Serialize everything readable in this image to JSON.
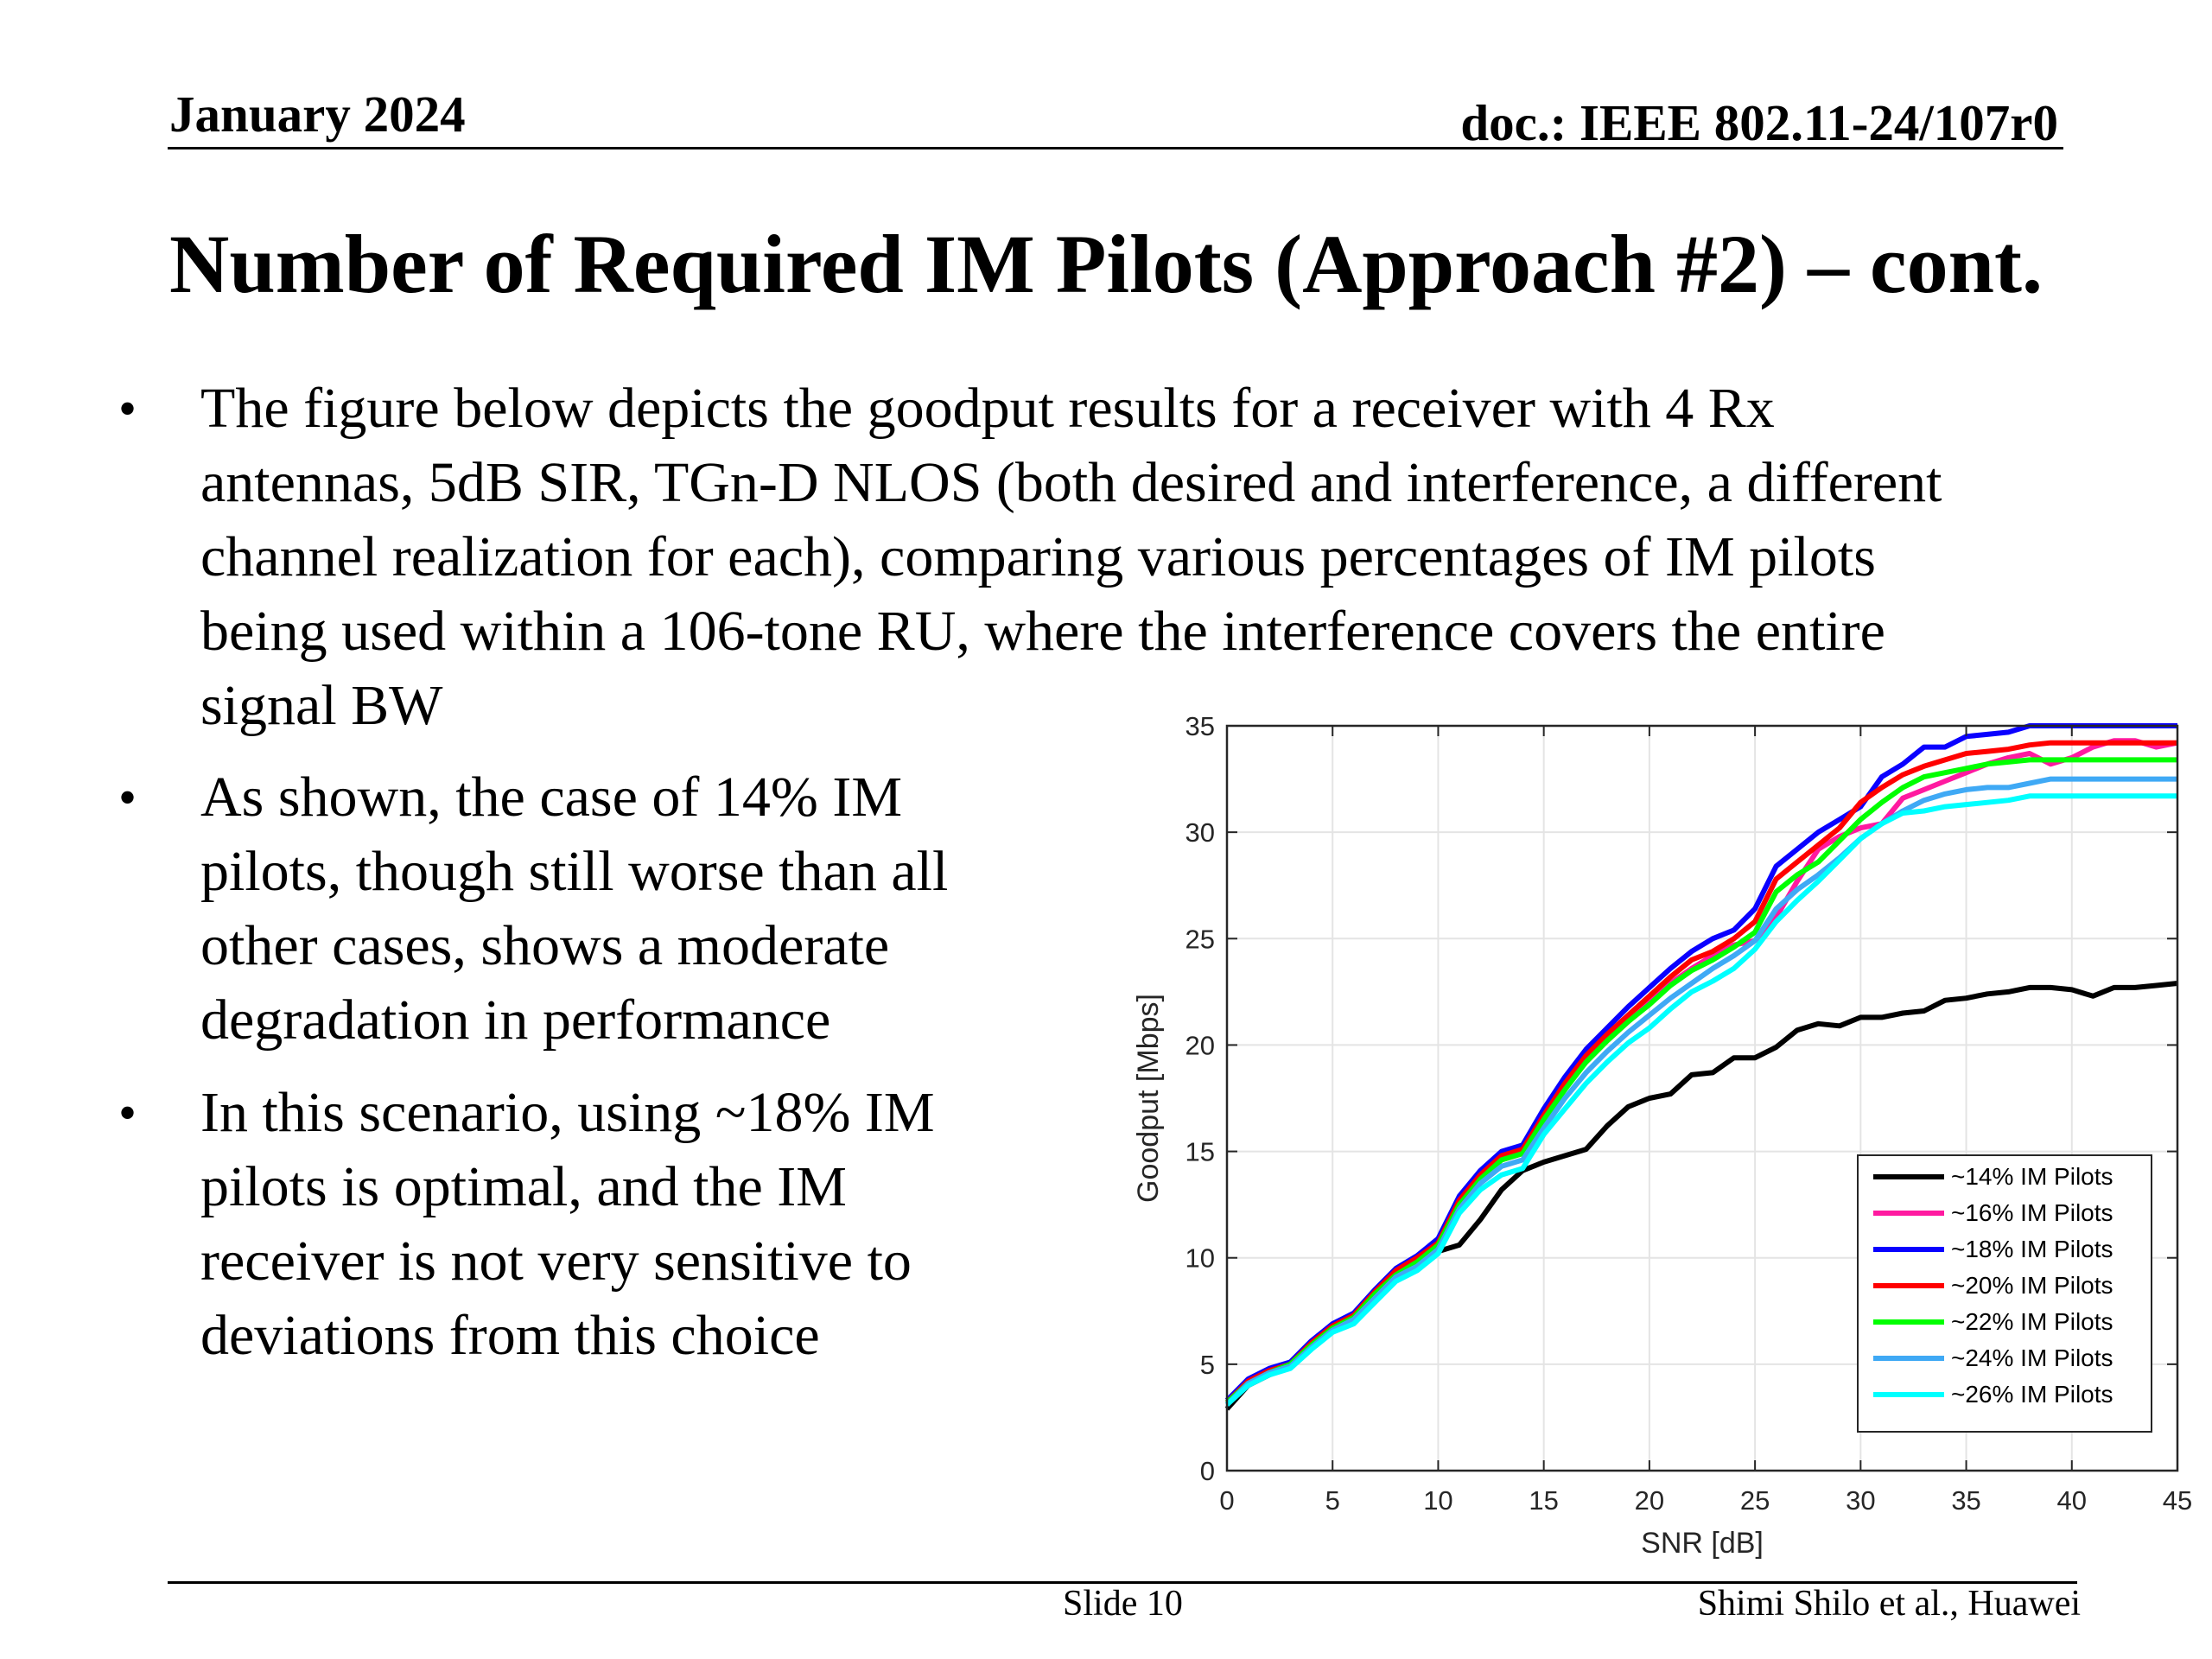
{
  "header": {
    "date": "January 2024",
    "doc": "doc.: IEEE 802.11-24/107r0"
  },
  "title": "Number of Required IM Pilots (Approach #2) – cont.",
  "bullets": [
    {
      "lines": [
        "The figure below depicts the goodput results for a receiver with 4 Rx",
        "antennas, 5dB SIR, TGn-D NLOS (both desired and interference, a different",
        "channel realization for each), comparing various percentages of IM pilots",
        "being used within a 106-tone RU, where the interference covers the entire",
        "signal BW"
      ]
    },
    {
      "lines": [
        "As shown, the case of 14% IM",
        "pilots, though still worse than all",
        "other cases, shows a moderate",
        "degradation in performance"
      ]
    },
    {
      "lines": [
        "In this scenario, using ~18% IM",
        "pilots is optimal, and the IM",
        "receiver is not very sensitive to",
        "deviations from this choice"
      ]
    }
  ],
  "bullet_symbol": "•",
  "footer": {
    "slide": "Slide 10",
    "author": "Shimi Shilo et al., Huawei"
  },
  "chart_data": {
    "type": "line",
    "xlabel": "SNR [dB]",
    "ylabel": "Goodput [Mbps]",
    "xlim": [
      0,
      45
    ],
    "ylim": [
      0,
      35
    ],
    "xticks": [
      0,
      5,
      10,
      15,
      20,
      25,
      30,
      35,
      40,
      45
    ],
    "yticks": [
      0,
      5,
      10,
      15,
      20,
      25,
      30,
      35
    ],
    "grid": true,
    "legend_position": "bottom-right",
    "x": [
      0,
      1,
      2,
      3,
      4,
      5,
      6,
      7,
      8,
      9,
      10,
      11,
      12,
      13,
      14,
      15,
      16,
      17,
      18,
      19,
      20,
      21,
      22,
      23,
      24,
      25,
      26,
      27,
      28,
      29,
      30,
      31,
      32,
      33,
      34,
      35,
      36,
      37,
      38,
      39,
      40,
      41,
      42,
      43,
      44,
      45
    ],
    "series": [
      {
        "name": "~14% IM Pilots",
        "color": "#000000",
        "values": [
          2.9,
          4.0,
          4.5,
          4.9,
          5.8,
          6.6,
          7.0,
          8.0,
          9.0,
          9.6,
          10.3,
          10.6,
          11.8,
          13.2,
          14.1,
          14.5,
          14.8,
          15.1,
          16.2,
          17.1,
          17.5,
          17.7,
          18.6,
          18.7,
          19.4,
          19.4,
          19.9,
          20.7,
          21.0,
          20.9,
          21.3,
          21.3,
          21.5,
          21.6,
          22.1,
          22.2,
          22.4,
          22.5,
          22.7,
          22.7,
          22.6,
          22.3,
          22.7,
          22.7,
          22.8,
          22.9
        ]
      },
      {
        "name": "~16% IM Pilots",
        "color": "#ff1aa0",
        "values": [
          3.1,
          4.1,
          4.6,
          5.0,
          5.9,
          6.8,
          7.2,
          8.3,
          9.2,
          9.7,
          10.5,
          12.6,
          13.8,
          14.6,
          14.9,
          16.6,
          18.0,
          19.2,
          20.2,
          21.1,
          22.0,
          22.9,
          23.6,
          24.2,
          24.7,
          24.9,
          26.0,
          27.7,
          29.2,
          29.8,
          30.2,
          30.4,
          31.6,
          32.0,
          32.4,
          32.8,
          33.2,
          33.5,
          33.7,
          33.2,
          33.5,
          34.0,
          34.3,
          34.3,
          34.0,
          34.2
        ]
      },
      {
        "name": "~18% IM Pilots",
        "color": "#0a00ff",
        "values": [
          3.3,
          4.3,
          4.8,
          5.1,
          6.1,
          6.9,
          7.4,
          8.5,
          9.5,
          10.1,
          10.9,
          12.9,
          14.1,
          15.0,
          15.3,
          17.0,
          18.5,
          19.8,
          20.8,
          21.8,
          22.7,
          23.6,
          24.4,
          25.0,
          25.4,
          26.4,
          28.4,
          29.2,
          30.0,
          30.6,
          31.2,
          32.6,
          33.2,
          34.0,
          34.0,
          34.5,
          34.6,
          34.7,
          35.0,
          35.0,
          35.0,
          35.0,
          35.0,
          35.0,
          35.0,
          35.0
        ]
      },
      {
        "name": "~20% IM Pilots",
        "color": "#ff0000",
        "values": [
          3.2,
          4.2,
          4.7,
          5.0,
          6.0,
          6.8,
          7.3,
          8.4,
          9.4,
          10.0,
          10.7,
          12.7,
          13.9,
          14.8,
          15.1,
          16.7,
          18.2,
          19.5,
          20.5,
          21.4,
          22.3,
          23.2,
          24.0,
          24.4,
          25.0,
          25.8,
          27.8,
          28.6,
          29.4,
          30.2,
          31.4,
          32.1,
          32.7,
          33.1,
          33.4,
          33.7,
          33.8,
          33.9,
          34.1,
          34.2,
          34.2,
          34.2,
          34.2,
          34.2,
          34.2,
          34.2
        ]
      },
      {
        "name": "~22% IM Pilots",
        "color": "#00ff00",
        "values": [
          3.2,
          4.1,
          4.6,
          5.0,
          5.9,
          6.7,
          7.2,
          8.3,
          9.2,
          9.8,
          10.6,
          12.5,
          13.7,
          14.6,
          14.9,
          16.5,
          17.9,
          19.2,
          20.2,
          21.1,
          21.9,
          22.8,
          23.5,
          24.0,
          24.6,
          25.3,
          27.2,
          28.0,
          28.6,
          29.6,
          30.6,
          31.4,
          32.1,
          32.6,
          32.8,
          33.0,
          33.2,
          33.3,
          33.4,
          33.4,
          33.4,
          33.4,
          33.4,
          33.4,
          33.4,
          33.4
        ]
      },
      {
        "name": "~24% IM Pilots",
        "color": "#3fa9f5",
        "values": [
          3.1,
          4.1,
          4.6,
          4.9,
          5.8,
          6.6,
          7.1,
          8.1,
          9.1,
          9.6,
          10.4,
          12.3,
          13.5,
          14.3,
          14.6,
          16.1,
          17.5,
          18.7,
          19.7,
          20.6,
          21.4,
          22.2,
          22.9,
          23.6,
          24.2,
          24.9,
          26.4,
          27.3,
          28.0,
          28.8,
          29.7,
          30.4,
          31.0,
          31.5,
          31.8,
          32.0,
          32.1,
          32.1,
          32.3,
          32.5,
          32.5,
          32.5,
          32.5,
          32.5,
          32.5,
          32.5
        ]
      },
      {
        "name": "~26% IM Pilots",
        "color": "#00ffff",
        "values": [
          3.1,
          4.0,
          4.5,
          4.8,
          5.7,
          6.5,
          6.9,
          7.9,
          8.9,
          9.4,
          10.2,
          12.1,
          13.2,
          13.9,
          14.2,
          15.8,
          17.0,
          18.2,
          19.2,
          20.1,
          20.8,
          21.7,
          22.5,
          23.0,
          23.6,
          24.5,
          25.8,
          26.8,
          27.7,
          28.7,
          29.7,
          30.4,
          30.9,
          31.0,
          31.2,
          31.3,
          31.4,
          31.5,
          31.7,
          31.7,
          31.7,
          31.7,
          31.7,
          31.7,
          31.7,
          31.7
        ]
      }
    ]
  }
}
